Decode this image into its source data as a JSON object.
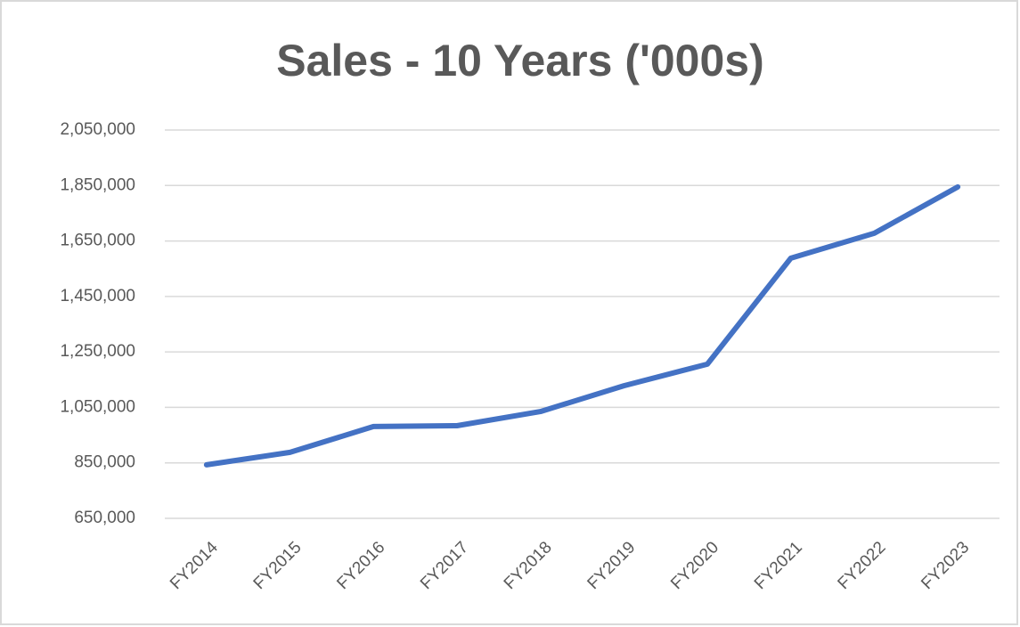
{
  "chart_data": {
    "type": "line",
    "title": "Sales - 10 Years ('000s)",
    "categories": [
      "FY2014",
      "FY2015",
      "FY2016",
      "FY2017",
      "FY2018",
      "FY2019",
      "FY2020",
      "FY2021",
      "FY2022",
      "FY2023"
    ],
    "series": [
      {
        "name": "Sales",
        "color": "#4472c4",
        "values": [
          843000,
          888000,
          981000,
          984000,
          1035000,
          1128000,
          1206000,
          1588000,
          1678000,
          1845000
        ]
      }
    ],
    "ylim": [
      650000,
      2050000
    ],
    "yticks": [
      {
        "value": 650000,
        "label": "650,000"
      },
      {
        "value": 850000,
        "label": "850,000"
      },
      {
        "value": 1050000,
        "label": "1,050,000"
      },
      {
        "value": 1250000,
        "label": "1,250,000"
      },
      {
        "value": 1450000,
        "label": "1,450,000"
      },
      {
        "value": 1650000,
        "label": "1,650,000"
      },
      {
        "value": 1850000,
        "label": "1,850,000"
      },
      {
        "value": 2050000,
        "label": "2,050,000"
      }
    ],
    "grid": true
  }
}
